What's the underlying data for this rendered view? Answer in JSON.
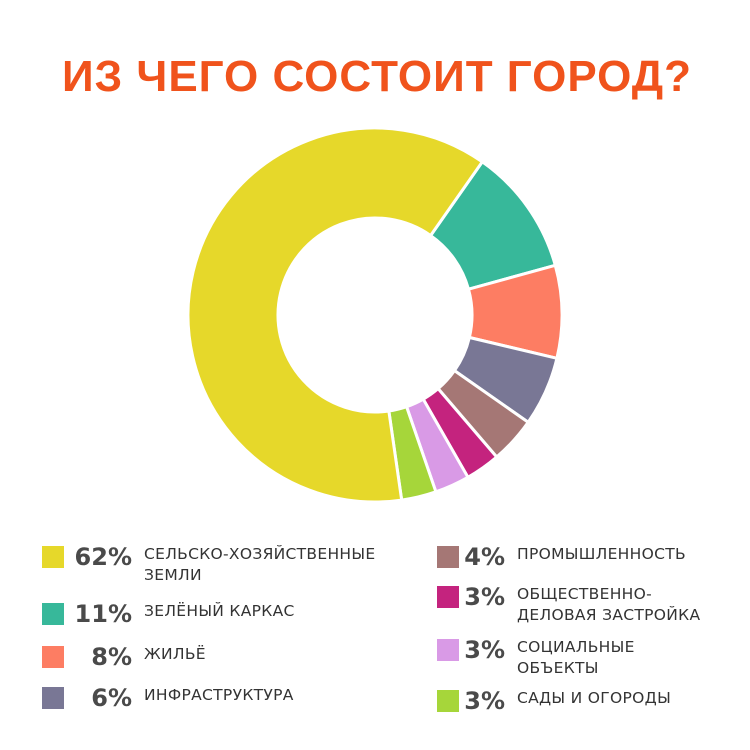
{
  "title": "ИЗ ЧЕГО СОСТОИТ ГОРОД?",
  "colors": {
    "title": "#f0531c",
    "pct_text": "#4a4a4a",
    "label_text": "#333333"
  },
  "chart_data": {
    "type": "pie",
    "variant": "donut",
    "title": "ИЗ ЧЕГО СОСТОИТ ГОРОД?",
    "unit": "%",
    "categories": [
      "СЕЛЬСКО-ХОЗЯЙСТВЕННЫЕ ЗЕМЛИ",
      "ЗЕЛЁНЫЙ КАРКАС",
      "ЖИЛЬЁ",
      "ИНФРАСТРУКТУРА",
      "ПРОМЫШЛЕННОСТЬ",
      "ОБЩЕСТВЕННО-ДЕЛОВАЯ ЗАСТРОЙКА",
      "СОЦИАЛЬНЫЕ ОБЪЕКТЫ",
      "САДЫ И ОГОРОДЫ"
    ],
    "values": [
      62,
      11,
      8,
      6,
      4,
      3,
      3,
      3
    ],
    "value_labels": [
      "62%",
      "11%",
      "8%",
      "6%",
      "4%",
      "3%",
      "3%",
      "3%"
    ],
    "colors": [
      "#e6d82a",
      "#37b89a",
      "#fd7d63",
      "#797795",
      "#a57775",
      "#c4237e",
      "#d99ae6",
      "#a6d63a"
    ],
    "legend_placement": "bottom"
  },
  "legend": {
    "items": [
      {
        "pct": "62%",
        "lines": [
          "СЕЛЬСКО-ХОЗЯЙСТВЕННЫЕ",
          "ЗЕМЛИ"
        ],
        "color": "#e6d82a"
      },
      {
        "pct": "11%",
        "lines": [
          "ЗЕЛЁНЫЙ КАРКАС"
        ],
        "color": "#37b89a"
      },
      {
        "pct": "8%",
        "lines": [
          "ЖИЛЬЁ"
        ],
        "color": "#fd7d63"
      },
      {
        "pct": "6%",
        "lines": [
          "ИНФРАСТРУКТУРА"
        ],
        "color": "#797795"
      },
      {
        "pct": "4%",
        "lines": [
          "ПРОМЫШЛЕННОСТЬ"
        ],
        "color": "#a57775"
      },
      {
        "pct": "3%",
        "lines": [
          "ОБЩЕСТВЕННО-",
          "ДЕЛОВАЯ ЗАСТРОЙКА"
        ],
        "color": "#c4237e"
      },
      {
        "pct": "3%",
        "lines": [
          "СОЦИАЛЬНЫЕ",
          "ОБЪЕКТЫ"
        ],
        "color": "#d99ae6"
      },
      {
        "pct": "3%",
        "lines": [
          "САДЫ И ОГОРОДЫ"
        ],
        "color": "#a6d63a"
      }
    ]
  }
}
